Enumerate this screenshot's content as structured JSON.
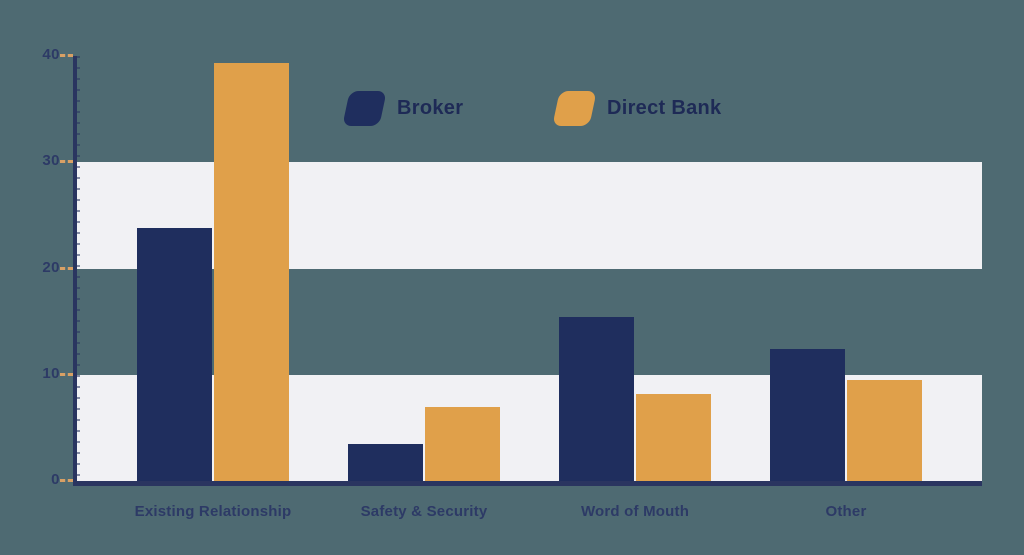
{
  "colors": {
    "background": "#4e6a72",
    "band": "#f1f1f4",
    "axis": "#2a3560",
    "tick_dash": "#d8a065",
    "axis_label_text": "#2d3a66",
    "legend_text": "#1e2a56",
    "broker": "#1f2e5e",
    "direct_bank": "#e0a04a"
  },
  "legend": {
    "items": [
      {
        "label": "Broker",
        "color": "#1f2e5e"
      },
      {
        "label": "Direct Bank",
        "color": "#e0a04a"
      }
    ]
  },
  "chart_data": {
    "type": "bar",
    "title": "",
    "xlabel": "",
    "ylabel": "",
    "categories": [
      "Existing Relationship",
      "Safety & Security",
      "Word of Mouth",
      "Other"
    ],
    "series": [
      {
        "name": "Broker",
        "color": "#1f2e5e",
        "values": [
          23.8,
          3.5,
          15.4,
          12.4
        ]
      },
      {
        "name": "Direct Bank",
        "color": "#e0a04a",
        "values": [
          39.3,
          7.0,
          8.2,
          9.5
        ]
      }
    ],
    "ylim": [
      0,
      40
    ],
    "yticks": [
      0,
      10,
      20,
      30,
      40
    ],
    "ytick_labels": [
      "0",
      "10",
      "20",
      "30",
      "40"
    ],
    "grid": "alternating horizontal bands (0-10 and 20-30 shaded light)",
    "legend_position": "top-center"
  }
}
